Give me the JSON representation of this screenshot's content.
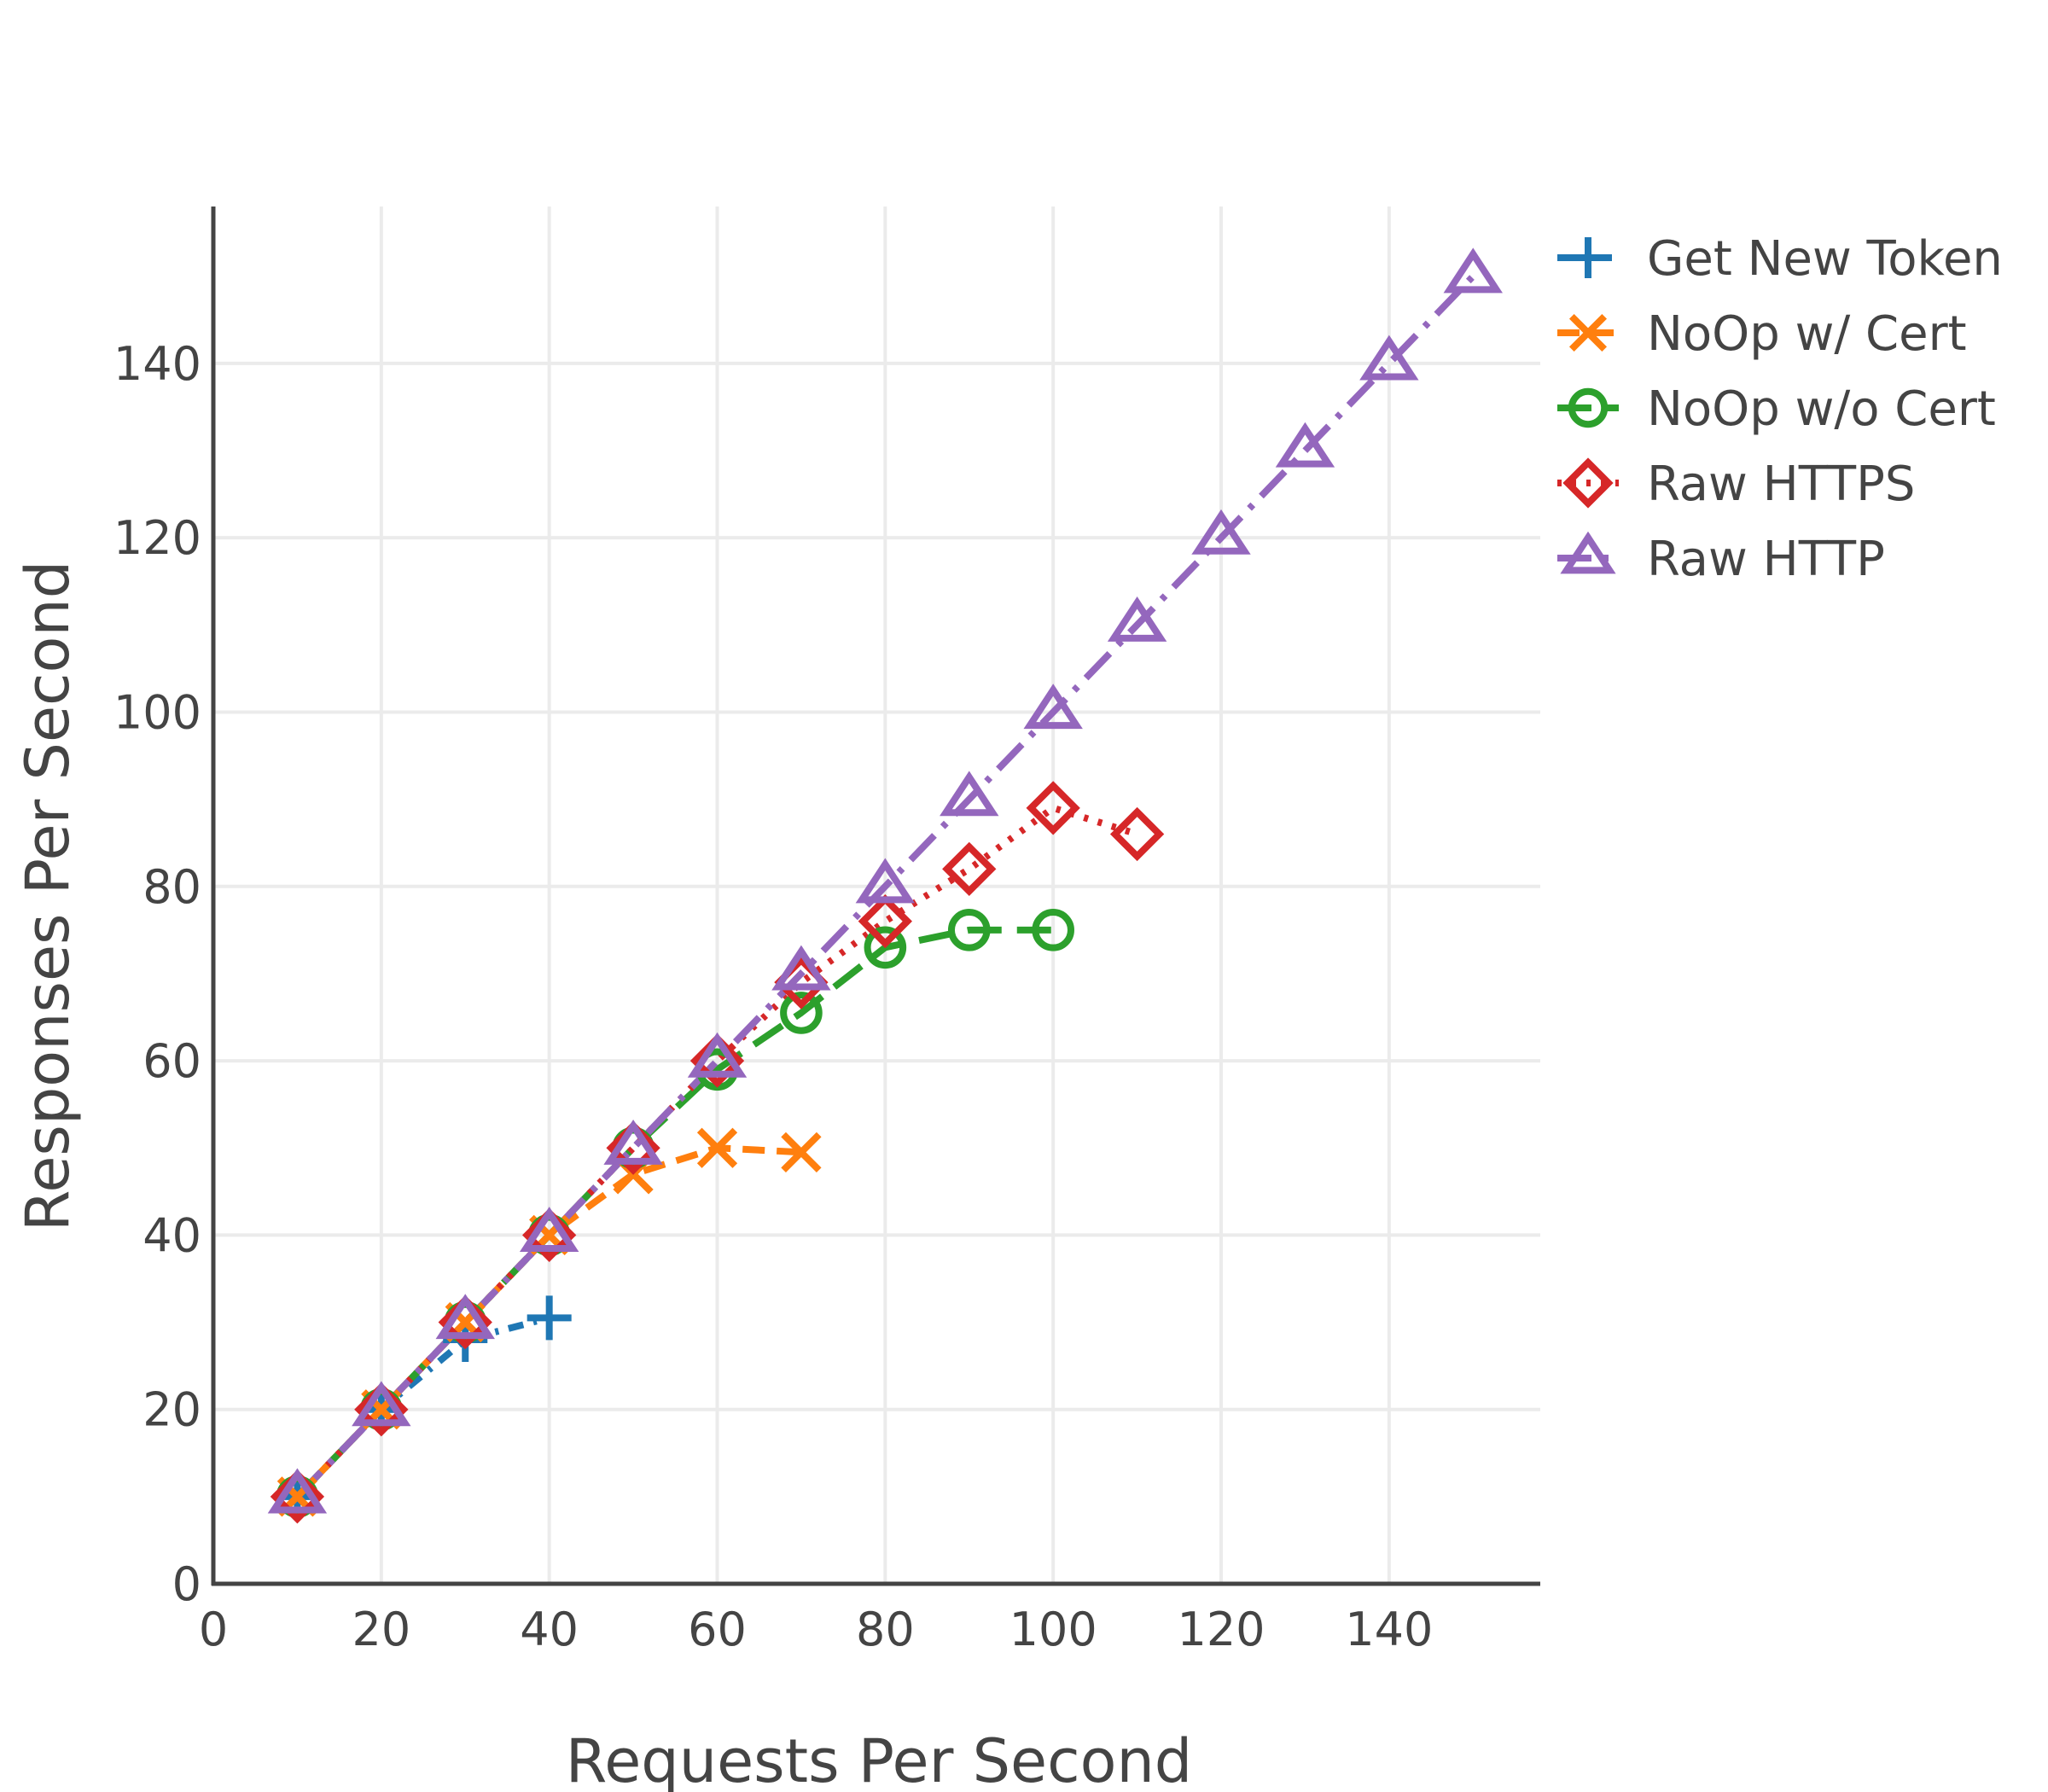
{
  "chart_data": {
    "type": "line",
    "title": "",
    "xlabel": "Requests Per Second",
    "ylabel": "Responses Per Second",
    "xlim": [
      0,
      158
    ],
    "ylim": [
      0,
      158
    ],
    "xticks": [
      0,
      20,
      40,
      60,
      80,
      100,
      120,
      140
    ],
    "yticks": [
      0,
      20,
      40,
      60,
      80,
      100,
      120,
      140
    ],
    "grid": true,
    "legend_position": "top-right",
    "series": [
      {
        "name": "Get New Token",
        "color": "#1f77b4",
        "marker": "cross",
        "dash": "dashdot",
        "x": [
          10,
          20,
          30,
          40
        ],
        "y": [
          10,
          20,
          28,
          30.5
        ]
      },
      {
        "name": "NoOp w/ Cert",
        "color": "#ff7f0e",
        "marker": "x",
        "dash": "dash",
        "x": [
          10,
          20,
          30,
          40,
          50,
          60,
          70
        ],
        "y": [
          10,
          20,
          30,
          40,
          47,
          50,
          49.5
        ]
      },
      {
        "name": "NoOp w/o Cert",
        "color": "#2ca02c",
        "marker": "circle-open",
        "dash": "longdash",
        "x": [
          10,
          20,
          30,
          40,
          50,
          60,
          70,
          80,
          90,
          100
        ],
        "y": [
          10,
          20,
          30,
          40,
          50,
          59,
          65.5,
          73,
          75,
          75
        ]
      },
      {
        "name": "Raw HTTPS",
        "color": "#d62728",
        "marker": "diamond-open",
        "dash": "dot",
        "x": [
          10,
          20,
          30,
          40,
          50,
          60,
          70,
          80,
          90,
          100,
          110
        ],
        "y": [
          10,
          20,
          30,
          40,
          50,
          60,
          69,
          76,
          82,
          89,
          86
        ]
      },
      {
        "name": "Raw HTTP",
        "color": "#9467bd",
        "marker": "triangle-open",
        "dash": "longdashdot",
        "x": [
          10,
          20,
          30,
          40,
          50,
          60,
          70,
          80,
          90,
          100,
          110,
          120,
          130,
          140,
          150
        ],
        "y": [
          10,
          20,
          30,
          40,
          50,
          60,
          70,
          80,
          90,
          100,
          110,
          120,
          130,
          140,
          150
        ]
      }
    ]
  }
}
